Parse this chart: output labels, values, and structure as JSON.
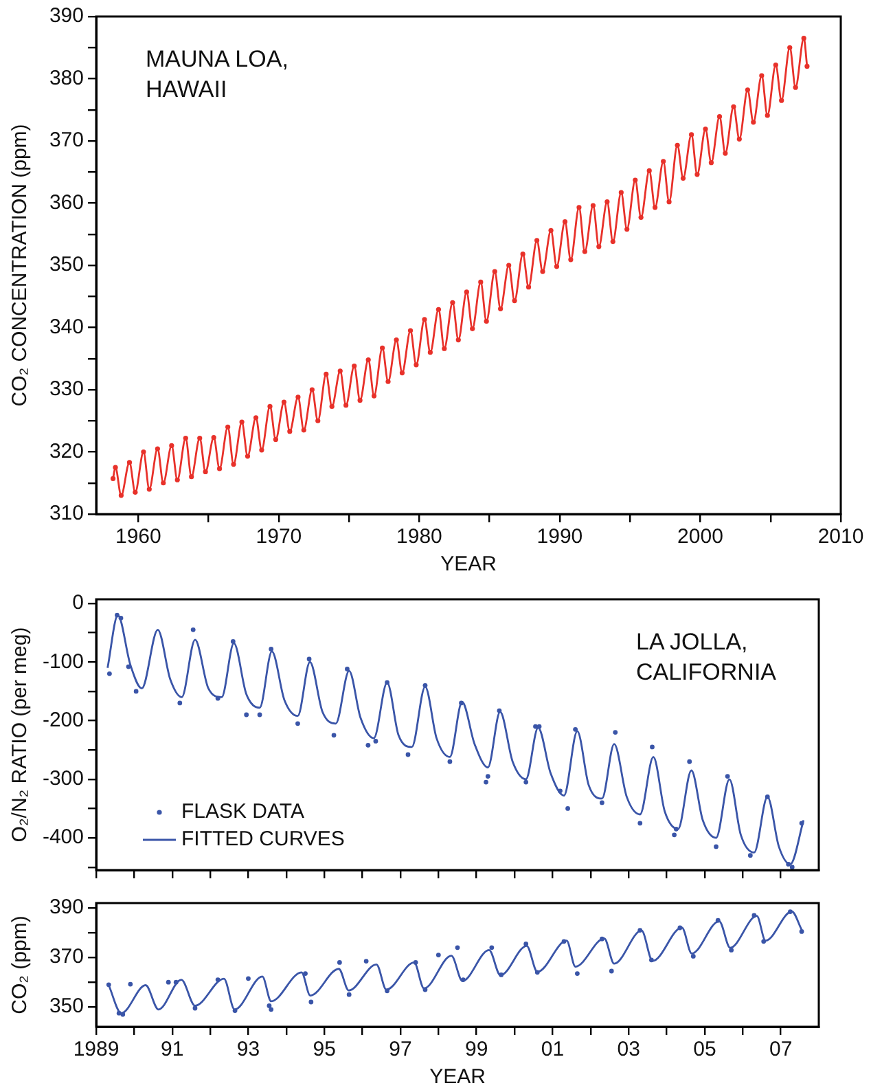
{
  "chart_data": [
    {
      "type": "line",
      "xlabel": "YEAR",
      "ylabel": "CO₂ CONCENTRATION (ppm)",
      "annotations": [
        "MAUNA LOA,\nHAWAII"
      ],
      "xlim": [
        1957,
        2010
      ],
      "xticks": [
        1960,
        {
          "value": 1965,
          "label": null
        },
        1970,
        {
          "value": 1975,
          "label": null
        },
        1980,
        {
          "value": 1985,
          "label": null
        },
        1990,
        {
          "value": 1995,
          "label": null
        },
        2000,
        {
          "value": 2005,
          "label": null
        },
        2010
      ],
      "ylim": [
        310,
        390
      ],
      "yticks": [
        310,
        {
          "value": 315,
          "label": null
        },
        320,
        {
          "value": 325,
          "label": null
        },
        330,
        {
          "value": 335,
          "label": null
        },
        340,
        {
          "value": 345,
          "label": null
        },
        350,
        {
          "value": 355,
          "label": null
        },
        360,
        {
          "value": 365,
          "label": null
        },
        370,
        {
          "value": 375,
          "label": null
        },
        380,
        {
          "value": 385,
          "label": null
        },
        390
      ],
      "series": [
        {
          "color": "#e8312a",
          "marker": "circle",
          "x": [
            1958.2,
            1958.37,
            1958.78,
            1959.37,
            1959.78,
            1960.37,
            1960.78,
            1961.37,
            1961.78,
            1962.37,
            1962.78,
            1963.37,
            1963.78,
            1964.37,
            1964.78,
            1965.37,
            1965.78,
            1966.37,
            1966.78,
            1967.37,
            1967.78,
            1968.37,
            1968.78,
            1969.37,
            1969.78,
            1970.37,
            1970.78,
            1971.37,
            1971.78,
            1972.37,
            1972.78,
            1973.37,
            1973.78,
            1974.37,
            1974.78,
            1975.37,
            1975.78,
            1976.37,
            1976.78,
            1977.37,
            1977.78,
            1978.37,
            1978.78,
            1979.37,
            1979.78,
            1980.37,
            1980.78,
            1981.37,
            1981.78,
            1982.37,
            1982.78,
            1983.37,
            1983.78,
            1984.37,
            1984.78,
            1985.37,
            1985.78,
            1986.37,
            1986.78,
            1987.37,
            1987.78,
            1988.37,
            1988.78,
            1989.37,
            1989.78,
            1990.37,
            1990.78,
            1991.37,
            1991.78,
            1992.37,
            1992.78,
            1993.37,
            1993.78,
            1994.37,
            1994.78,
            1995.37,
            1995.78,
            1996.37,
            1996.78,
            1997.37,
            1997.78,
            1998.37,
            1998.78,
            1999.37,
            1999.78,
            2000.37,
            2000.78,
            2001.37,
            2001.78,
            2002.37,
            2002.78,
            2003.37,
            2003.78,
            2004.37,
            2004.78,
            2005.37,
            2005.78,
            2006.37,
            2006.78,
            2007.37,
            2007.6
          ],
          "values": [
            315.7,
            317.5,
            313,
            318.3,
            313.5,
            320,
            314,
            320.5,
            315,
            321,
            315.5,
            322.2,
            316,
            322.2,
            316.8,
            322.3,
            317.3,
            324,
            318,
            324.8,
            319.3,
            325.5,
            320.3,
            327.3,
            322,
            328,
            323.3,
            328.8,
            323.5,
            330,
            325,
            332.5,
            327.3,
            333,
            327.5,
            333.8,
            328.3,
            334.8,
            329,
            336.7,
            331.3,
            338,
            332.7,
            339.5,
            334,
            341.3,
            336,
            342.9,
            336.6,
            344,
            338,
            345.7,
            339.8,
            347.3,
            341,
            349,
            343,
            350,
            344.3,
            351.8,
            346.5,
            354,
            349,
            355.6,
            349.8,
            357,
            350.9,
            359.3,
            352.2,
            359.6,
            353,
            360.2,
            353.8,
            361.7,
            355.8,
            363.7,
            357.7,
            365.2,
            359.3,
            366.7,
            360.2,
            369.3,
            364,
            371,
            364.6,
            371.9,
            366.5,
            373.9,
            368,
            375.5,
            370.3,
            378.2,
            373,
            380.5,
            374.1,
            382.2,
            376.5,
            385,
            378.6,
            386.5,
            382
          ]
        }
      ]
    },
    {
      "type": "line",
      "ylabel": "O₂/N₂ RATIO (per meg)",
      "annotations": [
        "LA JOLLA,\nCALIFORNIA"
      ],
      "legend": "bottom left",
      "tick_labels": "y",
      "xlim": [
        1989,
        2008
      ],
      "xticks": [
        {
          "value": 1989,
          "label": null
        },
        {
          "value": 1990,
          "label": null
        },
        {
          "value": 1991,
          "label": null
        },
        {
          "value": 1992,
          "label": null
        },
        {
          "value": 1993,
          "label": null
        },
        {
          "value": 1994,
          "label": null
        },
        {
          "value": 1995,
          "label": null
        },
        {
          "value": 1996,
          "label": null
        },
        {
          "value": 1997,
          "label": null
        },
        {
          "value": 1998,
          "label": null
        },
        {
          "value": 1999,
          "label": null
        },
        {
          "value": 2000,
          "label": null
        },
        {
          "value": 2001,
          "label": null
        },
        {
          "value": 2002,
          "label": null
        },
        {
          "value": 2003,
          "label": null
        },
        {
          "value": 2004,
          "label": null
        },
        {
          "value": 2005,
          "label": null
        },
        {
          "value": 2006,
          "label": null
        },
        {
          "value": 2007,
          "label": null
        }
      ],
      "ylim": [
        -455,
        7
      ],
      "yticks": [
        {
          "value": -450,
          "label": null
        },
        -400,
        {
          "value": -350,
          "label": null
        },
        -300,
        {
          "value": -250,
          "label": null
        },
        -200,
        {
          "value": -150,
          "label": null
        },
        -100,
        {
          "value": -50,
          "label": null
        },
        0
      ],
      "series": [
        {
          "name": "FLASK DATA",
          "type": "scatter",
          "marker": "circle",
          "color": "#3a55a8",
          "x": [
            1989.35,
            1989.55,
            1989.65,
            1989.85,
            1990.05,
            1991.2,
            1991.55,
            1992.2,
            1992.6,
            1992.95,
            1993.3,
            1993.6,
            1994.3,
            1994.6,
            1995.25,
            1995.6,
            1996.15,
            1996.35,
            1996.65,
            1997.2,
            1997.65,
            1998.3,
            1998.6,
            1999.25,
            1999.3,
            1999.6,
            2000.3,
            2000.55,
            2000.65,
            2001.2,
            2001.4,
            2001.6,
            2002.3,
            2002.65,
            2003.3,
            2003.62,
            2004.2,
            2004.25,
            2004.6,
            2005.3,
            2005.6,
            2006.2,
            2006.65,
            2007.2,
            2007.3,
            2007.55
          ],
          "values": [
            -120,
            -20,
            -25,
            -108,
            -150,
            -170,
            -45,
            -162,
            -65,
            -190,
            -190,
            -78,
            -205,
            -95,
            -225,
            -112,
            -242,
            -235,
            -135,
            -258,
            -140,
            -270,
            -170,
            -305,
            -295,
            -183,
            -305,
            -210,
            -210,
            -320,
            -350,
            -215,
            -340,
            -220,
            -375,
            -245,
            -395,
            -385,
            -270,
            -415,
            -295,
            -430,
            -330,
            -445,
            -450,
            -375
          ]
        },
        {
          "name": "FITTED CURVES",
          "color": "#3a55a8",
          "x": [
            1989.3,
            1989.57,
            1989.9,
            1990.2,
            1990.62,
            1990.95,
            1991.25,
            1991.6,
            1991.95,
            1992.3,
            1992.62,
            1992.95,
            1993.3,
            1993.62,
            1993.95,
            1994.3,
            1994.62,
            1994.95,
            1995.3,
            1995.65,
            1995.95,
            1996.3,
            1996.65,
            1996.95,
            1997.3,
            1997.65,
            1997.95,
            1998.3,
            1998.62,
            1998.95,
            1999.3,
            1999.62,
            1999.95,
            2000.3,
            2000.62,
            2000.95,
            2001.3,
            2001.65,
            2001.95,
            2002.3,
            2002.62,
            2002.95,
            2003.3,
            2003.65,
            2003.95,
            2004.3,
            2004.65,
            2004.95,
            2005.3,
            2005.65,
            2005.95,
            2006.3,
            2006.65,
            2006.95,
            2007.25,
            2007.6
          ],
          "values": [
            -110,
            -20,
            -105,
            -145,
            -45,
            -130,
            -160,
            -62,
            -145,
            -160,
            -68,
            -155,
            -178,
            -82,
            -165,
            -192,
            -100,
            -185,
            -205,
            -115,
            -195,
            -230,
            -135,
            -225,
            -245,
            -142,
            -230,
            -262,
            -168,
            -240,
            -280,
            -185,
            -270,
            -300,
            -212,
            -290,
            -328,
            -218,
            -310,
            -333,
            -240,
            -330,
            -360,
            -262,
            -355,
            -385,
            -285,
            -370,
            -400,
            -300,
            -395,
            -425,
            -330,
            -415,
            -445,
            -370
          ]
        }
      ]
    },
    {
      "type": "line",
      "xlabel": "YEAR",
      "ylabel": "CO₂ (ppm)",
      "xlim": [
        1989,
        2008
      ],
      "xticks": [
        {
          "value": 1989,
          "label": "1989"
        },
        {
          "value": 1990,
          "label": null
        },
        {
          "value": 1991,
          "label": "91"
        },
        {
          "value": 1992,
          "label": null
        },
        {
          "value": 1993,
          "label": "93"
        },
        {
          "value": 1994,
          "label": null
        },
        {
          "value": 1995,
          "label": "95"
        },
        {
          "value": 1996,
          "label": null
        },
        {
          "value": 1997,
          "label": "97"
        },
        {
          "value": 1998,
          "label": null
        },
        {
          "value": 1999,
          "label": "99"
        },
        {
          "value": 2000,
          "label": null
        },
        {
          "value": 2001,
          "label": "01"
        },
        {
          "value": 2002,
          "label": null
        },
        {
          "value": 2003,
          "label": "03"
        },
        {
          "value": 2004,
          "label": null
        },
        {
          "value": 2005,
          "label": "05"
        },
        {
          "value": 2006,
          "label": null
        },
        {
          "value": 2007,
          "label": "07"
        }
      ],
      "ylim": [
        342,
        392
      ],
      "yticks": [
        350,
        {
          "value": 360,
          "label": null
        },
        370,
        {
          "value": 380,
          "label": null
        },
        390
      ],
      "series": [
        {
          "type": "scatter",
          "marker": "circle",
          "color": "#3a55a8",
          "x": [
            1989.33,
            1989.6,
            1989.7,
            1989.9,
            1990.9,
            1991.1,
            1991.6,
            1992.2,
            1992.65,
            1993.0,
            1993.55,
            1993.6,
            1994.5,
            1994.65,
            1995.4,
            1995.65,
            1996.1,
            1996.65,
            1997.4,
            1997.65,
            1998.0,
            1998.5,
            1998.65,
            1999.4,
            1999.65,
            2000.3,
            2000.6,
            2001.3,
            2001.65,
            2002.3,
            2002.55,
            2003.3,
            2003.6,
            2004.35,
            2004.7,
            2005.35,
            2005.7,
            2006.3,
            2006.55,
            2007.25,
            2007.55
          ],
          "values": [
            359,
            347.5,
            347,
            359.2,
            360,
            360,
            349.5,
            361,
            348.5,
            361.5,
            350.5,
            349,
            363.5,
            352,
            368,
            355,
            368.5,
            356.5,
            368,
            357,
            371,
            374,
            361,
            374,
            363,
            375.5,
            364,
            376.5,
            363.5,
            377.5,
            364.5,
            381,
            369,
            382,
            370.5,
            385,
            373,
            387,
            376.5,
            388.5,
            380.5
          ]
        },
        {
          "color": "#3a55a8",
          "x": [
            1989.33,
            1989.66,
            1990.3,
            1990.64,
            1991.24,
            1991.6,
            1992.36,
            1992.64,
            1993.37,
            1993.6,
            1994.4,
            1994.63,
            1995.38,
            1995.64,
            1996.37,
            1996.63,
            1997.36,
            1997.62,
            1998.34,
            1998.63,
            1999.33,
            1999.63,
            2000.32,
            2000.6,
            2001.37,
            2001.6,
            2002.36,
            2002.62,
            2003.34,
            2003.63,
            2004.4,
            2004.66,
            2005.38,
            2005.67,
            2006.37,
            2006.6,
            2007.29,
            2007.55
          ],
          "values": [
            358.8,
            347.5,
            358.8,
            349,
            361,
            350.5,
            361.4,
            349,
            362.3,
            352.3,
            364,
            354.6,
            365.4,
            356.7,
            367.2,
            357,
            368,
            357.5,
            370.7,
            360.5,
            373,
            362.8,
            374.7,
            364.2,
            376.8,
            366.3,
            377.7,
            367.5,
            380.9,
            368.6,
            382.1,
            371.6,
            384.7,
            373.9,
            386.8,
            376.8,
            388.6,
            381.2
          ]
        }
      ]
    }
  ]
}
